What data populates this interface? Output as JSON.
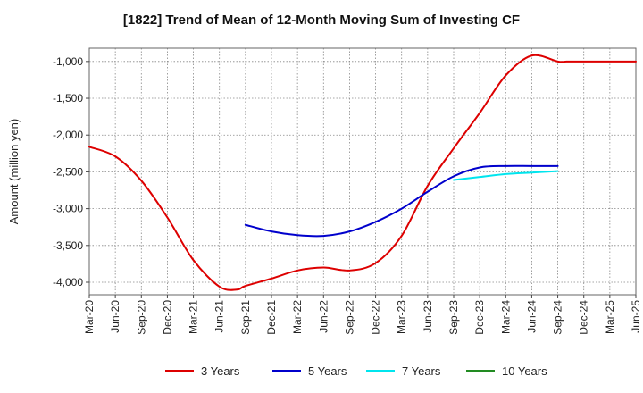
{
  "chart_data": {
    "type": "line",
    "title": "[1822]  Trend of Mean of 12-Month Moving Sum of Investing CF",
    "xlabel": "",
    "ylabel": "Amount (million yen)",
    "ylim": [
      -4170,
      -820
    ],
    "yticks": [
      -1000,
      -1500,
      -2000,
      -2500,
      -3000,
      -3500,
      -4000
    ],
    "ytick_labels": [
      "-1,000",
      "-1,500",
      "-2,000",
      "-2,500",
      "-3,000",
      "-3,500",
      "-4,000"
    ],
    "x_tick_labels": [
      "Mar-20",
      "Jun-20",
      "Sep-20",
      "Dec-20",
      "Mar-21",
      "Jun-21",
      "Sep-21",
      "Dec-21",
      "Mar-22",
      "Jun-22",
      "Sep-22",
      "Dec-22",
      "Mar-23",
      "Jun-23",
      "Sep-23",
      "Dec-23",
      "Mar-24",
      "Jun-24",
      "Sep-24",
      "Dec-24",
      "Mar-25",
      "Jun-25"
    ],
    "x_range_months": [
      0,
      63
    ],
    "grid": true,
    "legend_position": "bottom",
    "series": [
      {
        "name": "3 Years",
        "color": "#dd0000",
        "x_months": [
          0,
          3,
          6,
          9,
          12,
          15,
          17,
          18,
          21,
          24,
          27,
          30,
          33,
          36,
          39,
          42,
          45,
          48,
          51,
          54,
          55,
          56,
          57,
          58,
          59,
          60,
          61,
          62,
          63
        ],
        "values": [
          -2160,
          -2290,
          -2620,
          -3120,
          -3700,
          -4060,
          -4100,
          -4050,
          -3950,
          -3840,
          -3800,
          -3840,
          -3740,
          -3370,
          -2690,
          -2180,
          -1700,
          -1190,
          -920,
          -1000,
          -1000,
          -1000,
          -1000,
          -1000,
          -1000,
          -1000,
          -1000,
          -1000,
          -1000
        ]
      },
      {
        "name": "5 Years",
        "color": "#0000cc",
        "x_months": [
          18,
          21,
          24,
          27,
          30,
          33,
          36,
          39,
          42,
          45,
          48,
          51,
          54
        ],
        "values": [
          -3220,
          -3310,
          -3360,
          -3370,
          -3310,
          -3180,
          -3000,
          -2770,
          -2560,
          -2440,
          -2420,
          -2420,
          -2420
        ]
      },
      {
        "name": "7 Years",
        "color": "#00e5ee",
        "x_months": [
          42,
          45,
          48,
          51,
          54
        ],
        "values": [
          -2610,
          -2570,
          -2530,
          -2510,
          -2490
        ]
      },
      {
        "name": "10 Years",
        "color": "#228b22",
        "x_months": [],
        "values": []
      }
    ]
  }
}
